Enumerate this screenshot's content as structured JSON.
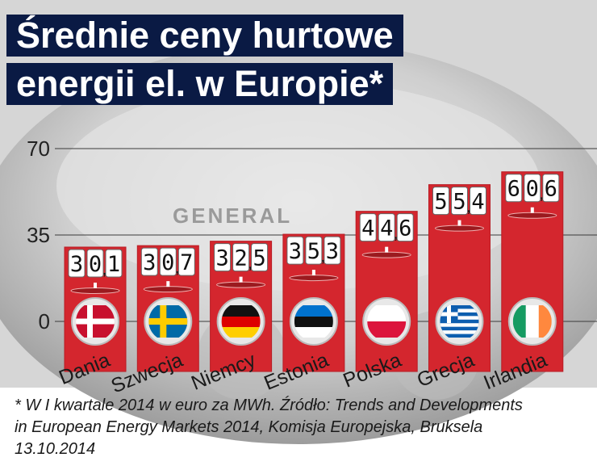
{
  "title_line1": "Średnie ceny hurtowe",
  "title_line2": "energii el. w Europie*",
  "footnote": "* W I kwartale 2014 w euro za MWh. Źródło: Trends and Developments in European Energy Markets 2014, Komisja Europejska, Bruksela 13.10.2014",
  "background_label": "GENERAL",
  "colors": {
    "bar": "#d4262e",
    "bar_dark": "#b81c24",
    "title_bg": "#0a1a44",
    "axis_text": "#222222"
  },
  "chart_data": {
    "type": "bar",
    "categories": [
      "Dania",
      "Szwecja",
      "Niemcy",
      "Estonia",
      "Polska",
      "Grecja",
      "Irlandia"
    ],
    "values": [
      30.1,
      30.7,
      32.5,
      35.3,
      44.6,
      55.4,
      60.6
    ],
    "value_labels": [
      "30,1",
      "30,7",
      "32,5",
      "35,3",
      "44,6",
      "55,4",
      "60,6"
    ],
    "flags": [
      "denmark-flag",
      "sweden-flag",
      "germany-flag",
      "estonia-flag",
      "poland-flag",
      "greece-flag",
      "ireland-flag"
    ],
    "yticks": [
      0,
      35,
      70
    ],
    "ylim": [
      0,
      70
    ],
    "grid": true
  }
}
